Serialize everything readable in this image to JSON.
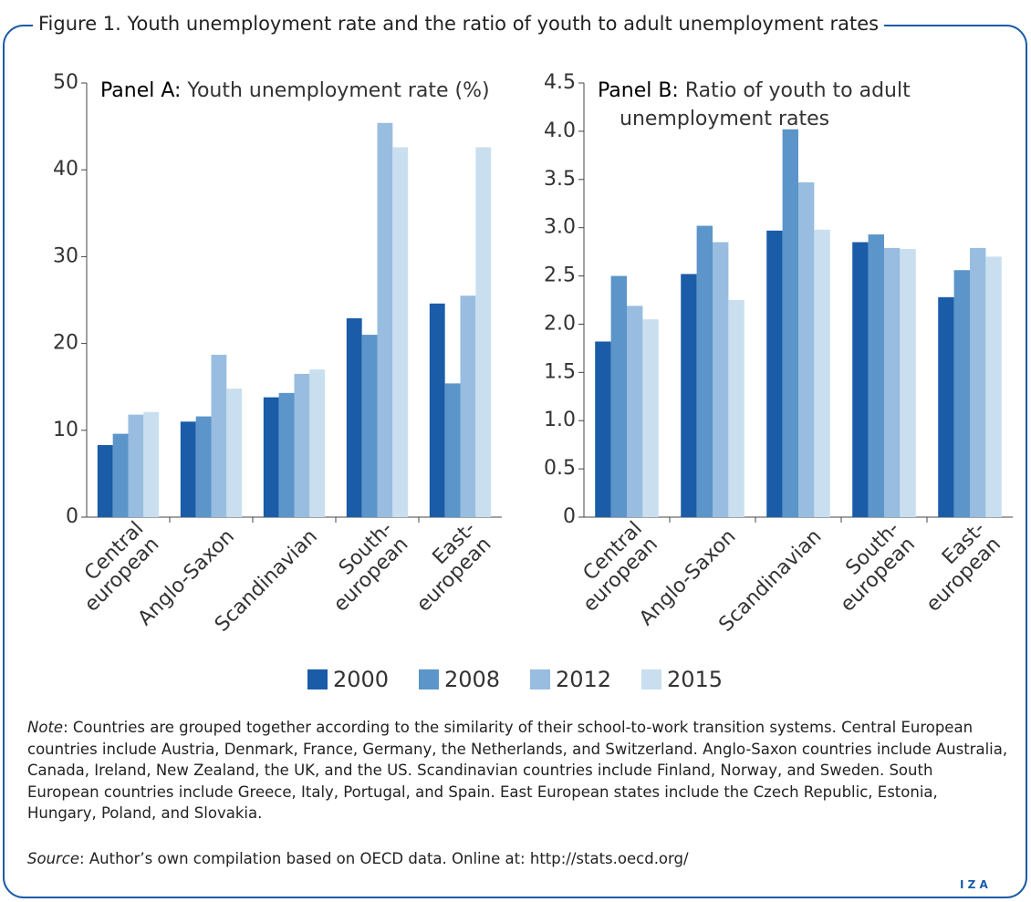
{
  "figure_title": "Figure 1. Youth unemployment rate and the ratio of youth to adult unemployment rates",
  "chart_data": [
    {
      "type": "bar",
      "panel_label": "Panel A:",
      "title": "Youth unemployment rate (%)",
      "categories": [
        "Central\neuropean",
        "Anglo-Saxon",
        "Scandinavian",
        "South-\neuropean",
        "East-\neuropean"
      ],
      "series": [
        {
          "name": "2000",
          "color": "#1a5ca8",
          "values": [
            8.3,
            11.0,
            13.8,
            22.9,
            24.6
          ]
        },
        {
          "name": "2008",
          "color": "#5b95c9",
          "values": [
            9.6,
            11.6,
            14.3,
            21.0,
            15.4
          ]
        },
        {
          "name": "2012",
          "color": "#98bde0",
          "values": [
            11.8,
            18.7,
            16.5,
            45.4,
            25.5
          ]
        },
        {
          "name": "2015",
          "color": "#c9dff0",
          "values": [
            12.1,
            14.8,
            17.0,
            42.6,
            42.6
          ]
        }
      ],
      "ylim": [
        0,
        50
      ],
      "yticks": [
        0,
        10,
        20,
        30,
        40,
        50
      ]
    },
    {
      "type": "bar",
      "panel_label": "Panel B:",
      "title": "Ratio of youth to adult unemployment rates",
      "categories": [
        "Central\neuropean",
        "Anglo-Saxon",
        "Scandinavian",
        "South-\neuropean",
        "East-\neuropean"
      ],
      "series": [
        {
          "color": "#1a5ca8",
          "values": [
            1.82,
            2.52,
            2.97,
            2.85,
            2.28
          ]
        },
        {
          "color": "#5b95c9",
          "values": [
            2.5,
            3.02,
            4.02,
            2.93,
            2.56
          ]
        },
        {
          "color": "#98bde0",
          "values": [
            2.19,
            2.85,
            3.47,
            2.79,
            2.79
          ]
        },
        {
          "color": "#c9dff0",
          "values": [
            2.05,
            2.25,
            2.98,
            2.78,
            2.7
          ]
        }
      ],
      "ylim": [
        0,
        4.5
      ],
      "yticks": [
        0,
        0.5,
        {
          "value": 1,
          "label": "1.0"
        },
        1.5,
        {
          "value": 2,
          "label": "2.0"
        },
        2.5,
        {
          "value": 3,
          "label": "3.0"
        },
        3.5,
        {
          "value": 4,
          "label": "4.0"
        },
        4.5
      ]
    }
  ],
  "note": {
    "label": "Note",
    "text": ": Countries are grouped together according to the similarity of their school-to-work transition systems. Central European countries include Austria, Denmark, France, Germany, the Netherlands, and Switzerland. Anglo-Saxon countries include Australia, Canada, Ireland, New Zealand, the UK, and the US. Scandinavian countries include Finland, Norway, and Sweden. South European countries include Greece, Italy, Portugal, and Spain. East European states include the Czech Republic, Estonia, Hungary, Poland, and Slovakia."
  },
  "source": {
    "label": "Source",
    "text": ": Author’s own compilation based on OECD data. Online at: http://stats.oecd.org/"
  },
  "logo": "I Z A"
}
